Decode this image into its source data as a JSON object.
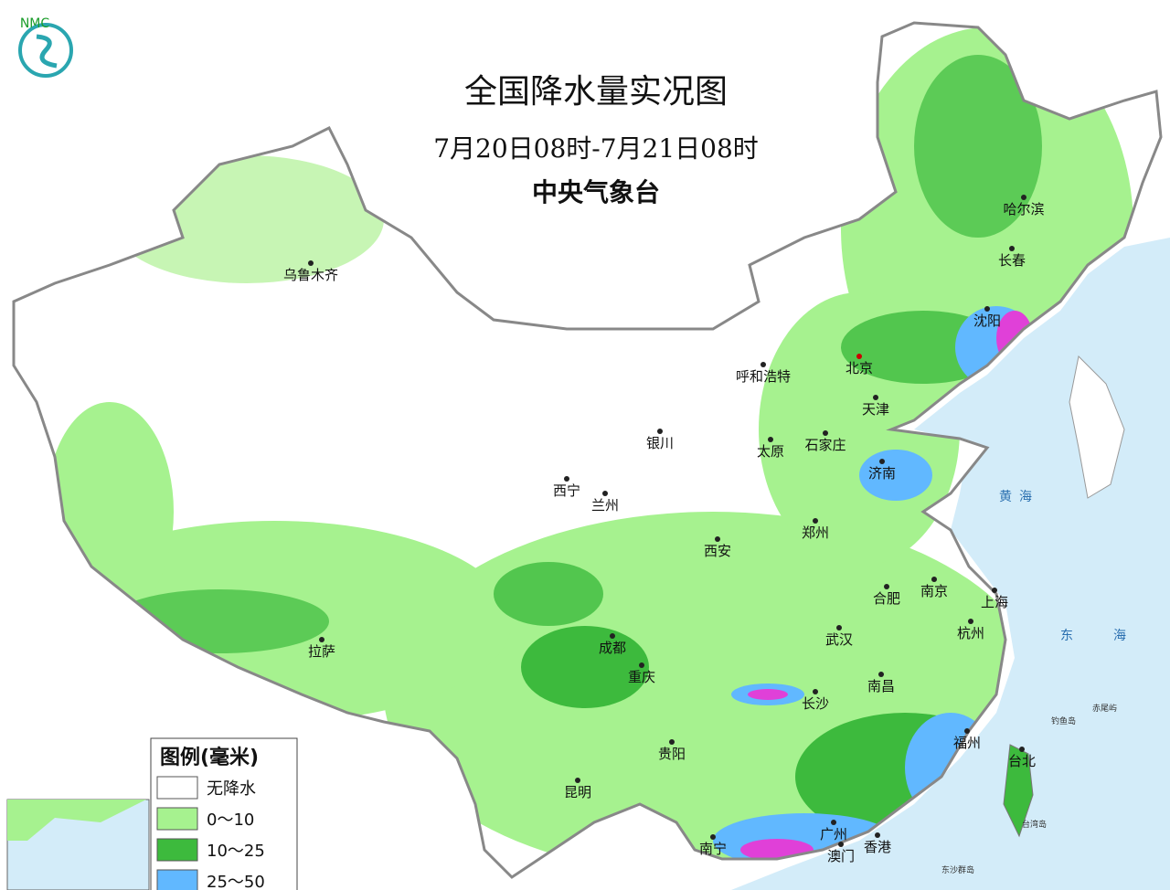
{
  "logo": "NMC",
  "title": "全国降水量实况图",
  "subtitle": "7月20日08时-7月21日08时",
  "source": "中央气象台",
  "legend": {
    "title": "图例(毫米)",
    "items": [
      {
        "label": "无降水",
        "color": "#ffffff"
      },
      {
        "label": "0～10",
        "color": "#a6f28f"
      },
      {
        "label": "10～25",
        "color": "#3dba3d"
      },
      {
        "label": "25～50",
        "color": "#61b8ff"
      }
    ]
  },
  "cities": [
    "乌鲁木齐",
    "北京",
    "哈尔滨",
    "长春",
    "沈阳",
    "呼和浩特",
    "天津",
    "银川",
    "太原",
    "石家庄",
    "济南",
    "西宁",
    "兰州",
    "郑州",
    "西安",
    "合肥",
    "南京",
    "上海",
    "成都",
    "武汉",
    "杭州",
    "拉萨",
    "重庆",
    "南昌",
    "长沙",
    "福州",
    "台北",
    "贵阳",
    "昆明",
    "南宁",
    "广州",
    "澳门",
    "香港"
  ],
  "seas": [
    "黄",
    "海",
    "东",
    "海"
  ],
  "islands": [
    "赤尾屿",
    "钓鱼岛",
    "台湾岛",
    "东沙群岛"
  ]
}
